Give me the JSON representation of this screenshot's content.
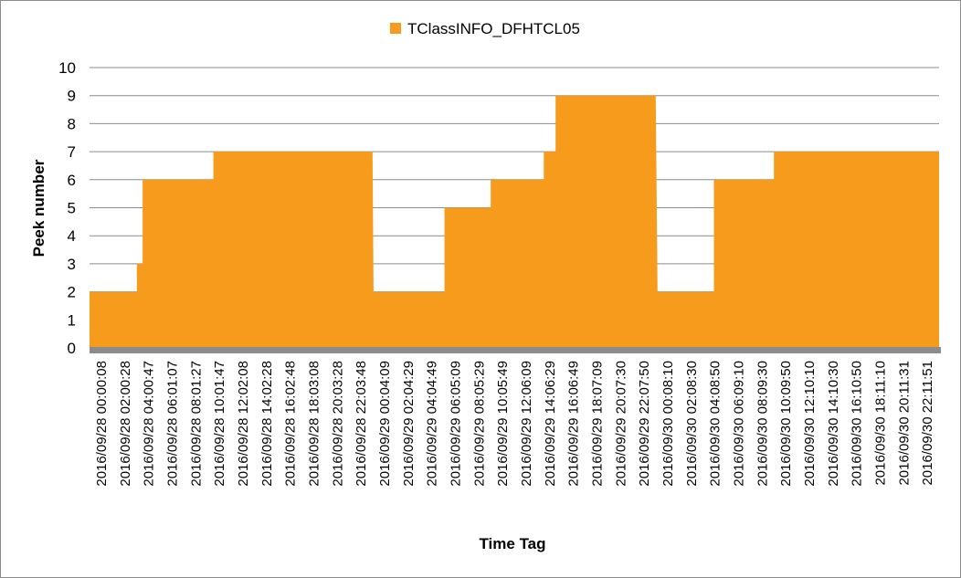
{
  "chart_data": {
    "type": "area",
    "title": "",
    "xlabel": "Time Tag",
    "ylabel": "Peek number",
    "ylim": [
      0,
      10
    ],
    "yticks": [
      0,
      1,
      2,
      3,
      4,
      5,
      6,
      7,
      8,
      9,
      10
    ],
    "grid": true,
    "legend_position": "top-center",
    "colors": {
      "series": "#f79b1c",
      "grid": "#8c8c8c",
      "axis": "#8c8c8c"
    },
    "x_tick_labels": [
      "2016/09/28 00:00:08",
      "2016/09/28 02:00:28",
      "2016/09/28 04:00:47",
      "2016/09/28 06:01:07",
      "2016/09/28 08:01:27",
      "2016/09/28 10:01:47",
      "2016/09/28 12:02:08",
      "2016/09/28 14:02:28",
      "2016/09/28 16:02:48",
      "2016/09/28 18:03:08",
      "2016/09/28 20:03:28",
      "2016/09/28 22:03:48",
      "2016/09/29 00:04:09",
      "2016/09/29 02:04:29",
      "2016/09/29 04:04:49",
      "2016/09/29 06:05:09",
      "2016/09/29 08:05:29",
      "2016/09/29 10:05:49",
      "2016/09/29 12:06:09",
      "2016/09/29 14:06:29",
      "2016/09/29 16:06:49",
      "2016/09/29 18:07:09",
      "2016/09/29 20:07:30",
      "2016/09/29 22:07:50",
      "2016/09/30 00:08:10",
      "2016/09/30 02:08:30",
      "2016/09/30 04:08:50",
      "2016/09/30 06:09:10",
      "2016/09/30 08:09:30",
      "2016/09/30 10:09:50",
      "2016/09/30 12:10:10",
      "2016/09/30 14:10:30",
      "2016/09/30 16:10:50",
      "2016/09/30 18:11:10",
      "2016/09/30 20:11:31",
      "2016/09/30 22:11:51"
    ],
    "series": [
      {
        "name": "TClassINFO_DFHTCL05",
        "points": [
          {
            "x": "2016/09/28 00:00:08",
            "y": 2
          },
          {
            "x": "2016/09/28 04:00:47",
            "y": 2
          },
          {
            "x": "2016/09/28 04:00:47",
            "y": 3
          },
          {
            "x": "2016/09/28 04:30:00",
            "y": 3
          },
          {
            "x": "2016/09/28 04:30:00",
            "y": 6
          },
          {
            "x": "2016/09/28 10:30:00",
            "y": 6
          },
          {
            "x": "2016/09/28 10:30:00",
            "y": 7
          },
          {
            "x": "2016/09/28 23:59:00",
            "y": 7
          },
          {
            "x": "2016/09/29 00:04:09",
            "y": 2
          },
          {
            "x": "2016/09/29 06:05:09",
            "y": 2
          },
          {
            "x": "2016/09/29 06:05:09",
            "y": 5
          },
          {
            "x": "2016/09/29 10:00:00",
            "y": 5
          },
          {
            "x": "2016/09/29 10:00:00",
            "y": 6
          },
          {
            "x": "2016/09/29 14:30:00",
            "y": 6
          },
          {
            "x": "2016/09/29 14:30:00",
            "y": 7
          },
          {
            "x": "2016/09/29 15:30:00",
            "y": 7
          },
          {
            "x": "2016/09/29 15:30:00",
            "y": 9
          },
          {
            "x": "2016/09/29 23:59:00",
            "y": 9
          },
          {
            "x": "2016/09/30 00:08:10",
            "y": 2
          },
          {
            "x": "2016/09/30 04:55:00",
            "y": 2
          },
          {
            "x": "2016/09/30 04:55:00",
            "y": 6
          },
          {
            "x": "2016/09/30 10:00:00",
            "y": 6
          },
          {
            "x": "2016/09/30 10:00:00",
            "y": 7
          },
          {
            "x": "2016/09/30 23:59:59",
            "y": 7
          }
        ]
      }
    ]
  }
}
